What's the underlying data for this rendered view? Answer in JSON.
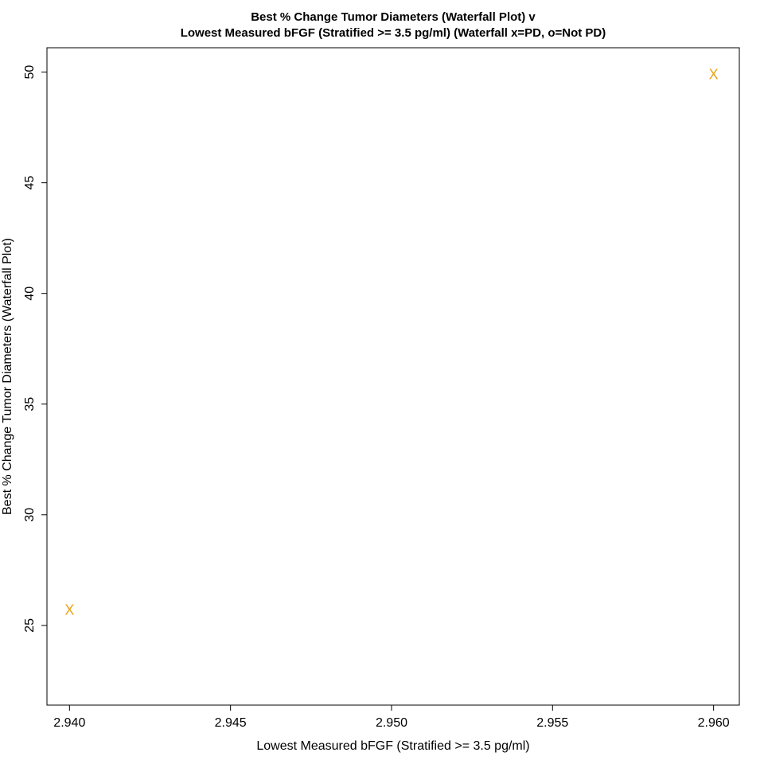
{
  "chart_data": {
    "type": "scatter",
    "title_line1": "Best % Change Tumor Diameters (Waterfall Plot) v",
    "title_line2": "Lowest Measured bFGF (Stratified >= 3.5 pg/ml) (Waterfall x=PD, o=Not PD)",
    "xlabel": "Lowest Measured bFGF (Stratified >= 3.5 pg/ml)",
    "ylabel": "Best % Change Tumor Diameters (Waterfall Plot)",
    "xlim": [
      2.9393,
      2.9608
    ],
    "ylim": [
      21.4,
      51.1
    ],
    "x_ticks": [
      {
        "value": 2.94,
        "label": "2.940"
      },
      {
        "value": 2.945,
        "label": "2.945"
      },
      {
        "value": 2.95,
        "label": "2.950"
      },
      {
        "value": 2.955,
        "label": "2.955"
      },
      {
        "value": 2.96,
        "label": "2.960"
      }
    ],
    "y_ticks": [
      {
        "value": 25,
        "label": "25"
      },
      {
        "value": 30,
        "label": "30"
      },
      {
        "value": 35,
        "label": "35"
      },
      {
        "value": 40,
        "label": "40"
      },
      {
        "value": 45,
        "label": "45"
      },
      {
        "value": 50,
        "label": "50"
      }
    ],
    "points": [
      {
        "x": 2.94,
        "y": 25.7,
        "marker": "x",
        "color": "#E8A317"
      },
      {
        "x": 2.96,
        "y": 49.9,
        "marker": "x",
        "color": "#E8A317"
      }
    ],
    "grid": false,
    "legend": "none"
  }
}
